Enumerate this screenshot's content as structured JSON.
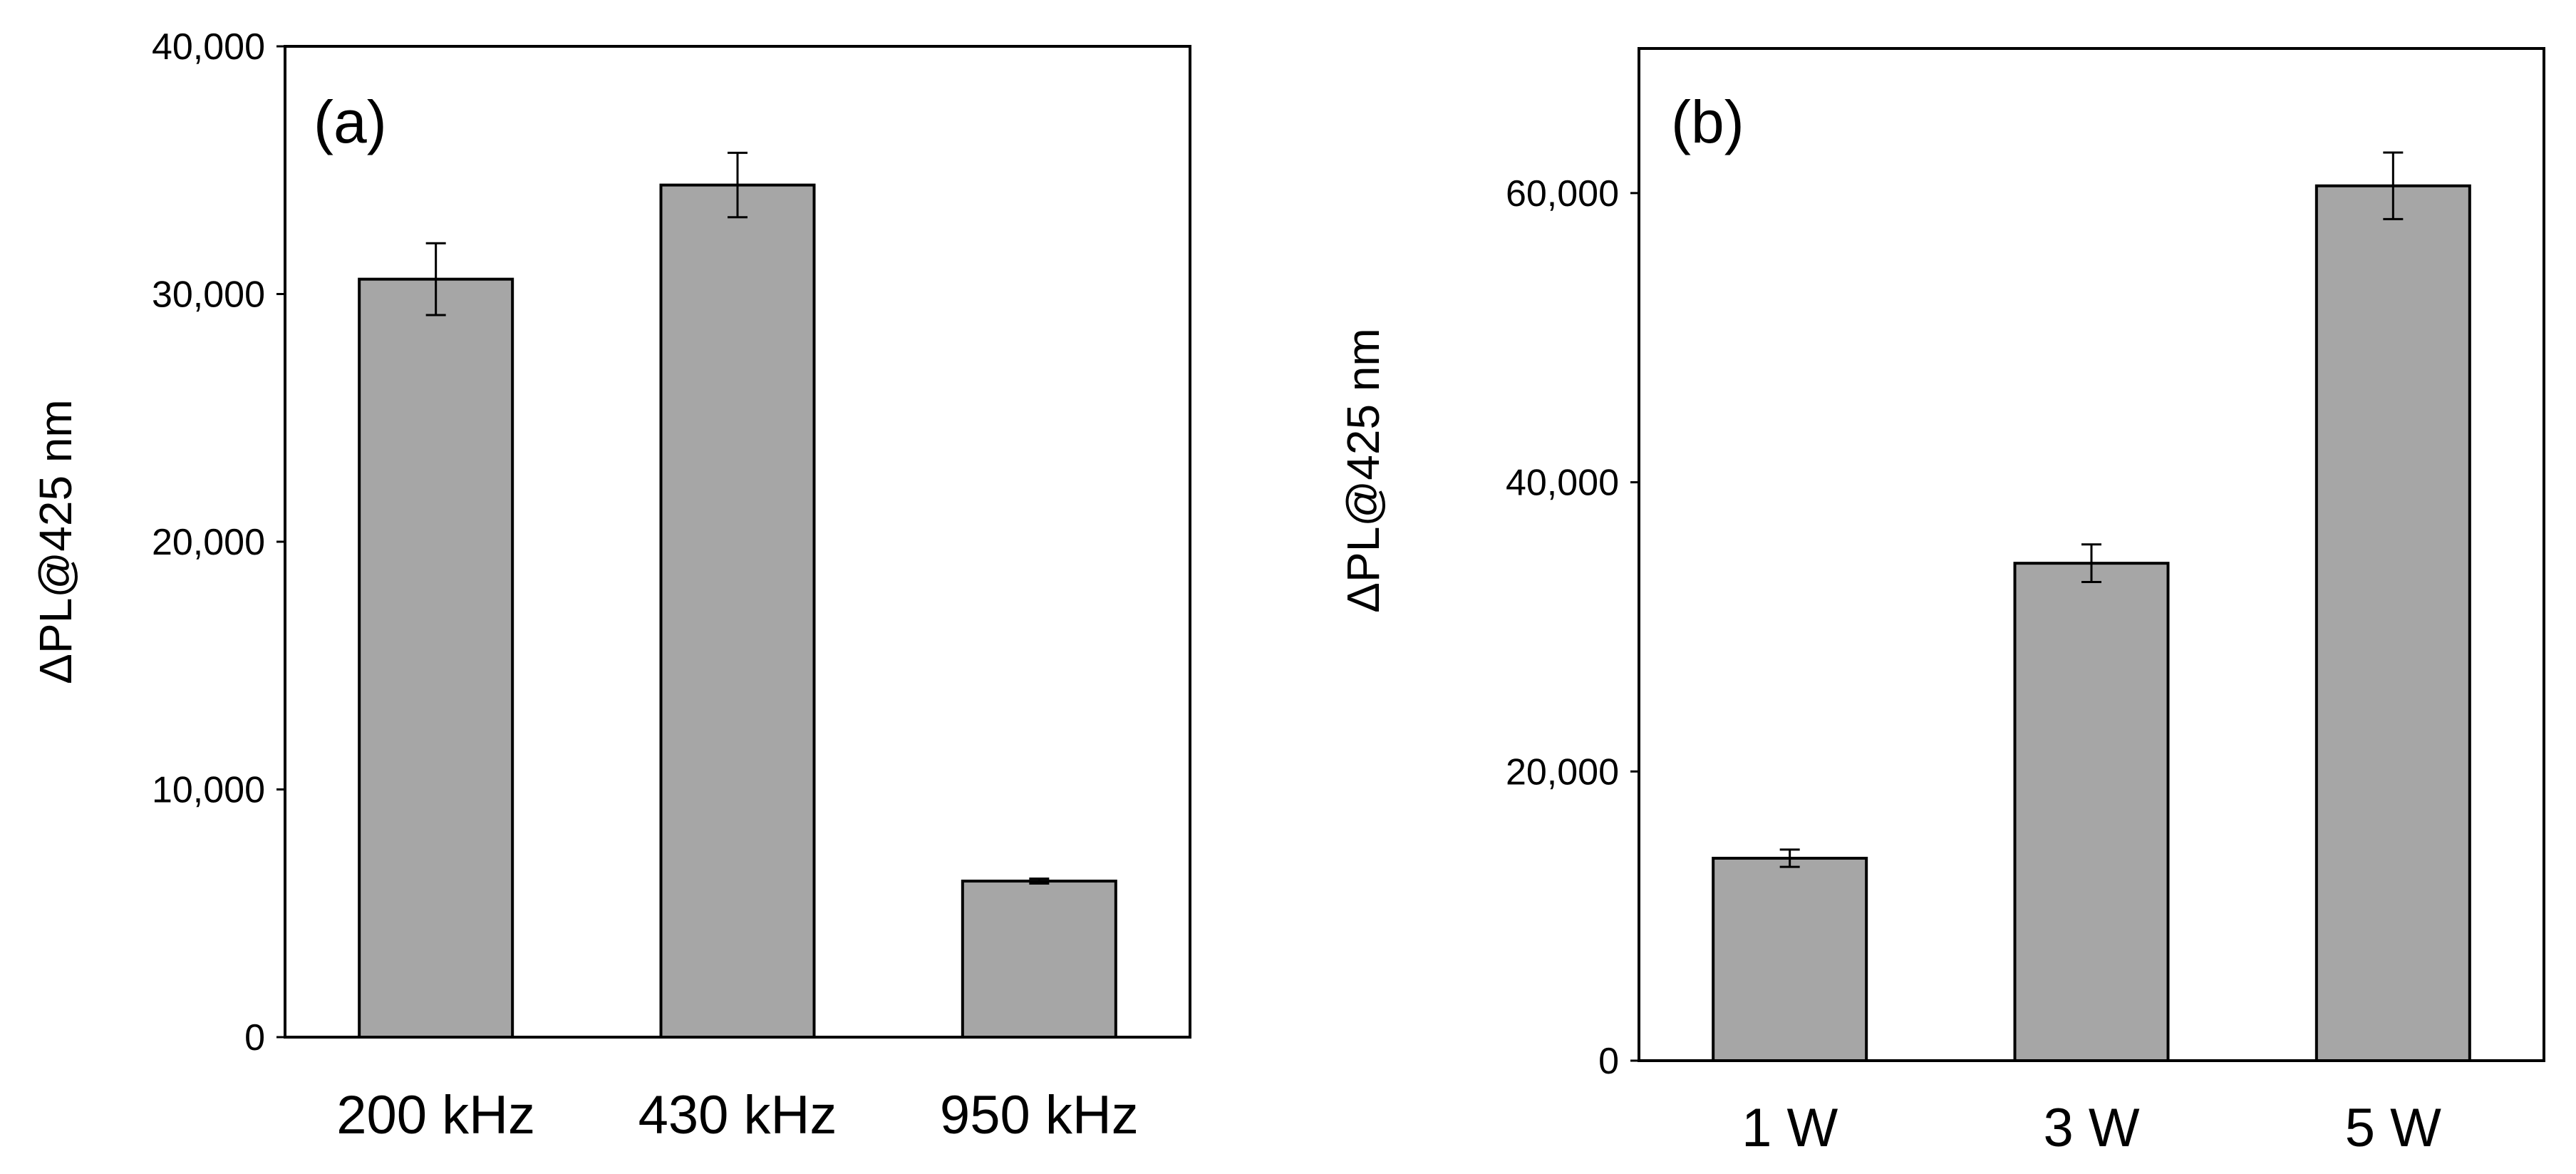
{
  "chart_data": [
    {
      "type": "bar",
      "panel_label": "(a)",
      "categories": [
        "200 kHz",
        "430 kHz",
        "950 kHz"
      ],
      "values": [
        30600,
        34400,
        6300
      ],
      "errors": [
        1450,
        1300,
        100
      ],
      "ylabel": "ΔPL@425 nm",
      "xlabel": "",
      "ylim": [
        0,
        40000
      ],
      "yticks": [
        0,
        10000,
        20000,
        30000,
        40000
      ],
      "ytick_labels": [
        "0",
        "10,000",
        "20,000",
        "30,000",
        "40,000"
      ],
      "grid": false,
      "bar_color": "#a6a6a6"
    },
    {
      "type": "bar",
      "panel_label": "(b)",
      "categories": [
        "1 W",
        "3 W",
        "5 W"
      ],
      "values": [
        14000,
        34400,
        60500
      ],
      "errors": [
        600,
        1300,
        2300
      ],
      "ylabel": "ΔPL@425 nm",
      "xlabel": "",
      "ylim": [
        0,
        70000
      ],
      "yticks": [
        0,
        20000,
        40000,
        60000
      ],
      "ytick_labels": [
        "0",
        "20,000",
        "40,000",
        "60,000"
      ],
      "grid": false,
      "bar_color": "#a6a6a6"
    }
  ]
}
